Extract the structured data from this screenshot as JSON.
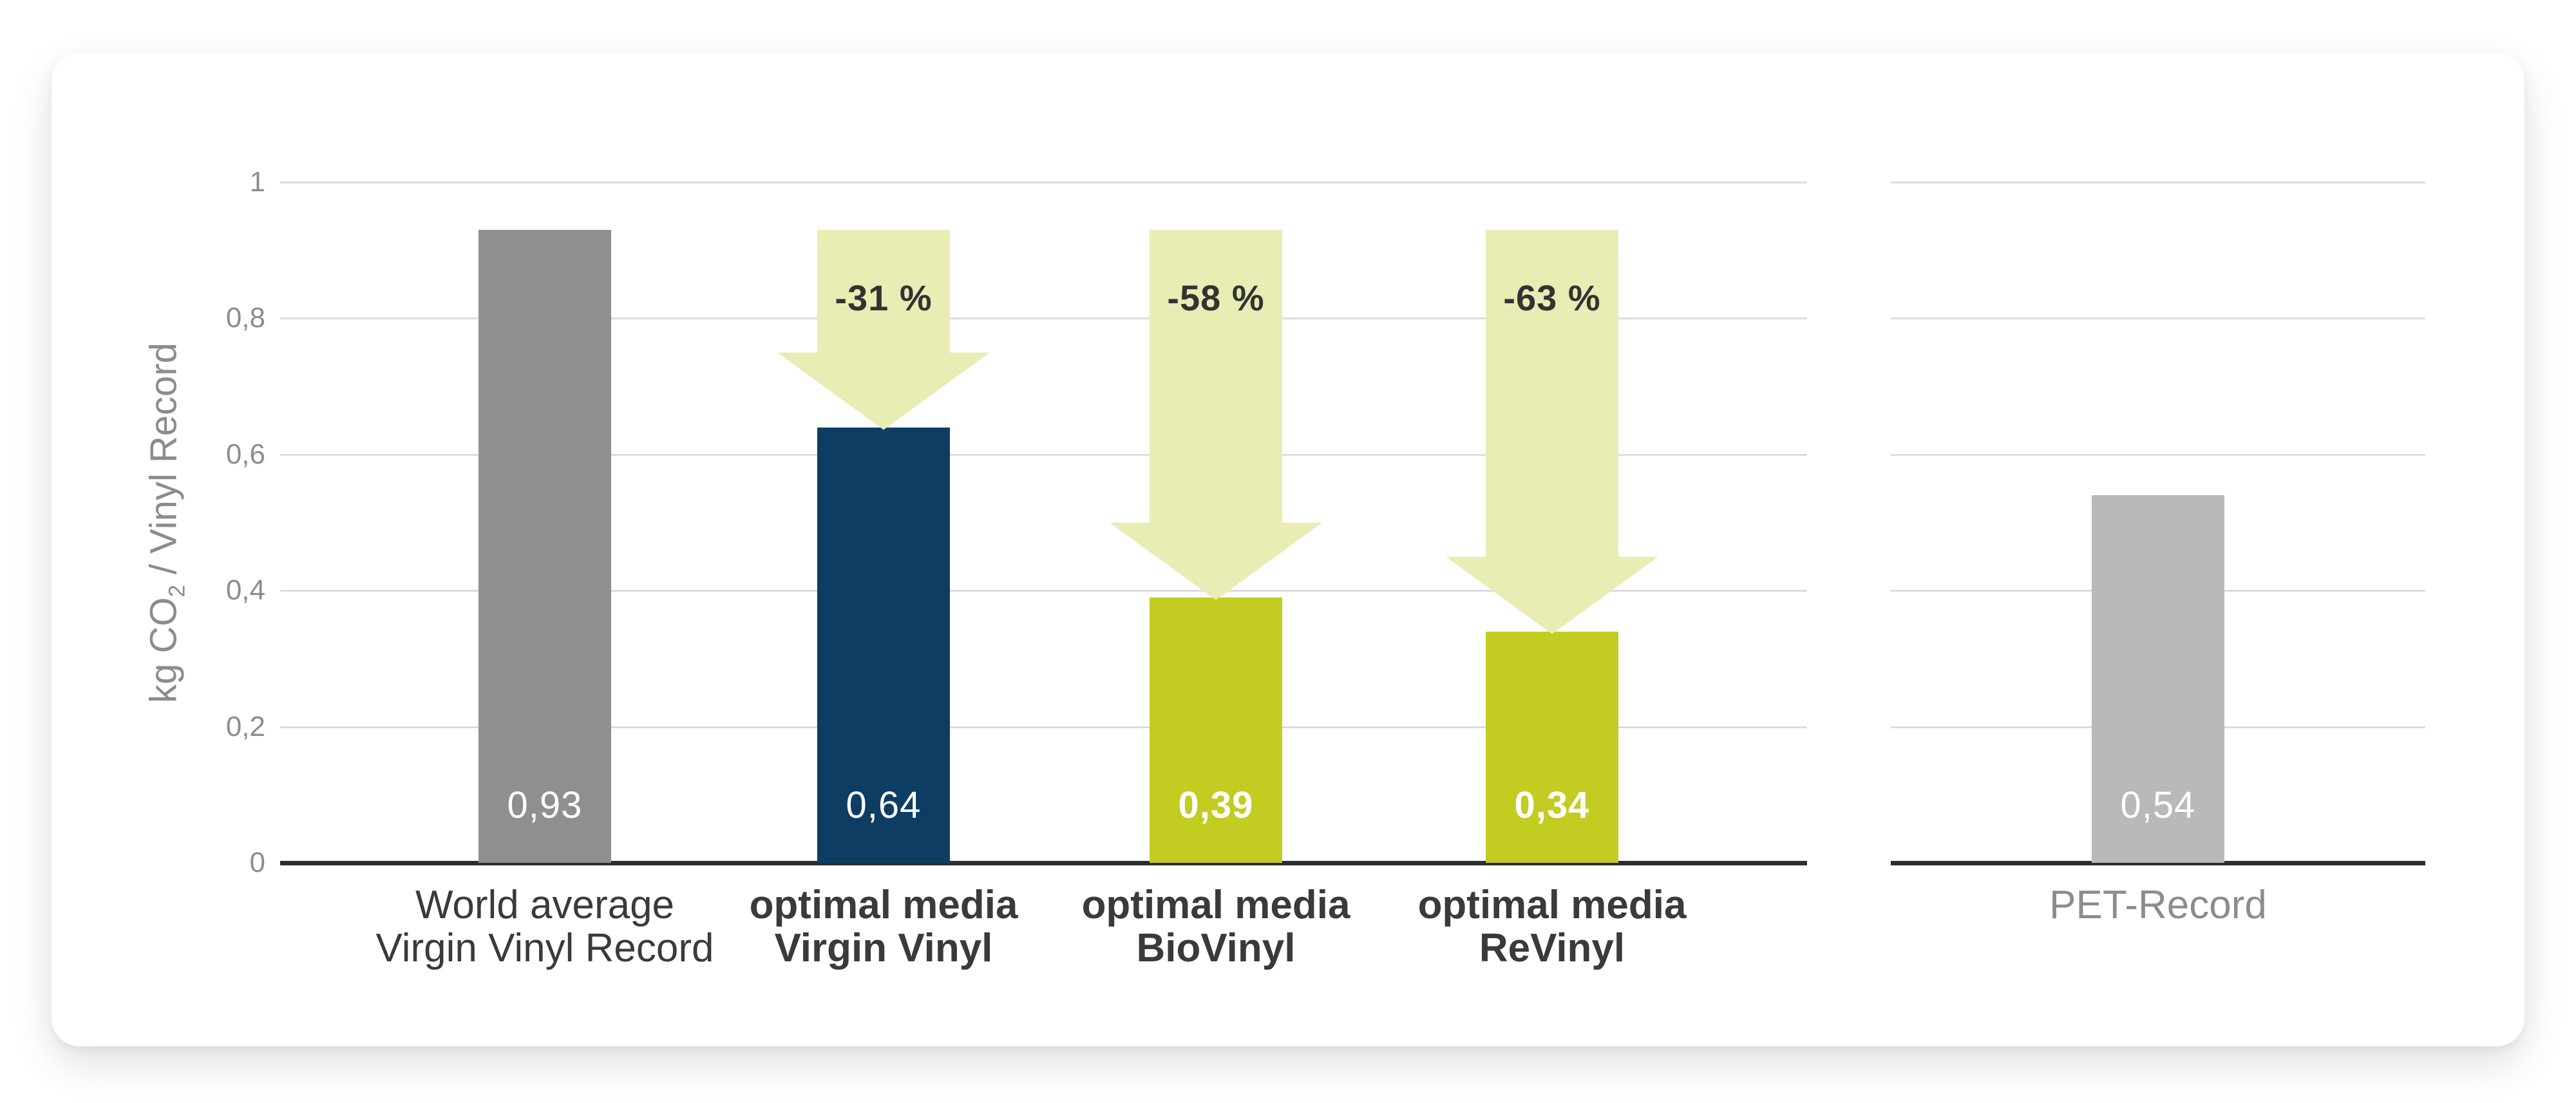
{
  "page": {
    "background": "#ffffff",
    "card_background": "#ffffff"
  },
  "colors": {
    "grid_line": "#dcdcdc",
    "axis_line": "#2d2d2d",
    "tick_label": "#8c8c8c",
    "axis_title": "#8c8c8c",
    "bar_value_label": "#ffffff",
    "category_label_dark": "#3a3a3a",
    "category_label_gray": "#8c8c8c",
    "percent_label": "#333333",
    "arrow_fill": "#e9ecb3",
    "bar_gray": "#8f8f8f",
    "bar_blue": "#0e3d63",
    "bar_green": "#c3cc20",
    "bar_light_gray": "#b9b9b9"
  },
  "chart_data": {
    "type": "bar",
    "title": "",
    "ylabel": "kg CO2 / Vinyl Record",
    "ylabel_parts": {
      "prefix": "kg CO",
      "subscript": "2",
      "suffix": " / Vinyl Record"
    },
    "xlabel": "",
    "ylim": [
      0,
      1
    ],
    "grid": true,
    "decimal_separator": ",",
    "yticks": [
      {
        "value": 1,
        "label": "1"
      },
      {
        "value": 0.8,
        "label": "0,8"
      },
      {
        "value": 0.6,
        "label": "0,6"
      },
      {
        "value": 0.4,
        "label": "0,4"
      },
      {
        "value": 0.2,
        "label": "0,2"
      },
      {
        "value": 0,
        "label": "0"
      }
    ],
    "sections": [
      {
        "name": "vinyl-records",
        "bars": [
          {
            "category": [
              "World average",
              "Virgin Vinyl Record"
            ],
            "value": 0.93,
            "value_label": "0,93",
            "color_key": "bar_gray",
            "category_bold": false,
            "category_gray": false,
            "value_bold": false
          },
          {
            "category": [
              "optimal media",
              "Virgin Vinyl"
            ],
            "value": 0.64,
            "value_label": "0,64",
            "color_key": "bar_blue",
            "category_bold": true,
            "category_gray": false,
            "value_bold": false,
            "reduction": {
              "label": "-31 %",
              "from_value": 0.93
            }
          },
          {
            "category": [
              "optimal media",
              "BioVinyl"
            ],
            "value": 0.39,
            "value_label": "0,39",
            "color_key": "bar_green",
            "category_bold": true,
            "category_gray": false,
            "value_bold": true,
            "reduction": {
              "label": "-58 %",
              "from_value": 0.93
            }
          },
          {
            "category": [
              "optimal media",
              "ReVinyl"
            ],
            "value": 0.34,
            "value_label": "0,34",
            "color_key": "bar_green",
            "category_bold": true,
            "category_gray": false,
            "value_bold": true,
            "reduction": {
              "label": "-63 %",
              "from_value": 0.93
            }
          }
        ]
      },
      {
        "name": "pet-record",
        "bars": [
          {
            "category": [
              "PET-Record"
            ],
            "value": 0.54,
            "value_label": "0,54",
            "color_key": "bar_light_gray",
            "category_bold": false,
            "category_gray": true,
            "value_bold": false
          }
        ]
      }
    ]
  }
}
